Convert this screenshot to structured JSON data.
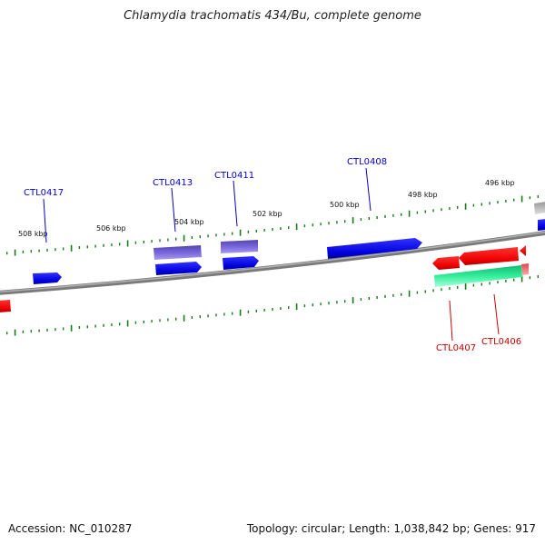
{
  "title": "Chlamydia trachomatis 434/Bu, complete genome",
  "accession_text": "Accession: NC_010287",
  "stats_text": "Topology: circular; Length: 1,038,842 bp; Genes: 917",
  "colors": {
    "backbone": "#808080",
    "tick": "#1a7a1a",
    "gene_cds": "#0000ee",
    "gene_dark": "#6655cc",
    "gene_red": "#ee0000",
    "gene_teal": "#22dd99",
    "gene_grey": "#bbbbbb",
    "label_blue": "#0000cc",
    "label_red": "#cc0000"
  },
  "kbp_labels": [
    "508 kbp",
    "506 kbp",
    "504 kbp",
    "502 kbp",
    "500 kbp",
    "498 kbp",
    "496 kbp"
  ],
  "gene_labels": {
    "CTL0417": "CTL0417",
    "CTL0413": "CTL0413",
    "CTL0411": "CTL0411",
    "CTL0408": "CTL0408",
    "CTL0407": "CTL0407",
    "CTL0406": "CTL0406"
  }
}
